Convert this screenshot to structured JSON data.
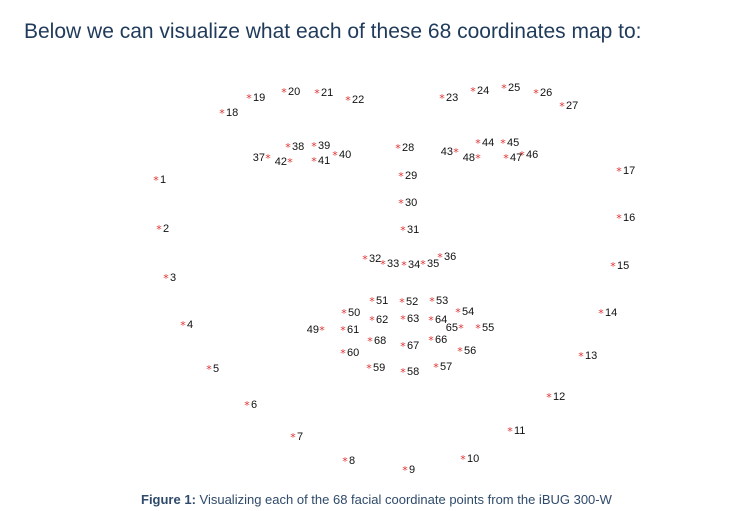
{
  "heading": "Below we can visualize what each of these 68 coordinates map to:",
  "caption": {
    "label": "Figure 1:",
    "text": " Visualizing each of the 68 facial coordinate points from the iBUG 300-W"
  },
  "colors": {
    "marker": "#e03030",
    "label": "#111111",
    "heading": "#1f3a5a",
    "caption": "#2f4a6a"
  },
  "landmarks": {
    "labels": [
      "1",
      "2",
      "3",
      "4",
      "5",
      "6",
      "7",
      "8",
      "9",
      "10",
      "11",
      "12",
      "13",
      "14",
      "15",
      "16",
      "17",
      "18",
      "19",
      "20",
      "21",
      "22",
      "23",
      "24",
      "25",
      "26",
      "27",
      "28",
      "29",
      "30",
      "31",
      "32",
      "33",
      "34",
      "35",
      "36",
      "37",
      "38",
      "39",
      "40",
      "41",
      "42",
      "43",
      "44",
      "45",
      "46",
      "47",
      "48",
      "49",
      "50",
      "51",
      "52",
      "53",
      "54",
      "55",
      "56",
      "57",
      "58",
      "59",
      "60",
      "61",
      "62",
      "63",
      "64",
      "65",
      "66",
      "67",
      "68"
    ]
  }
}
